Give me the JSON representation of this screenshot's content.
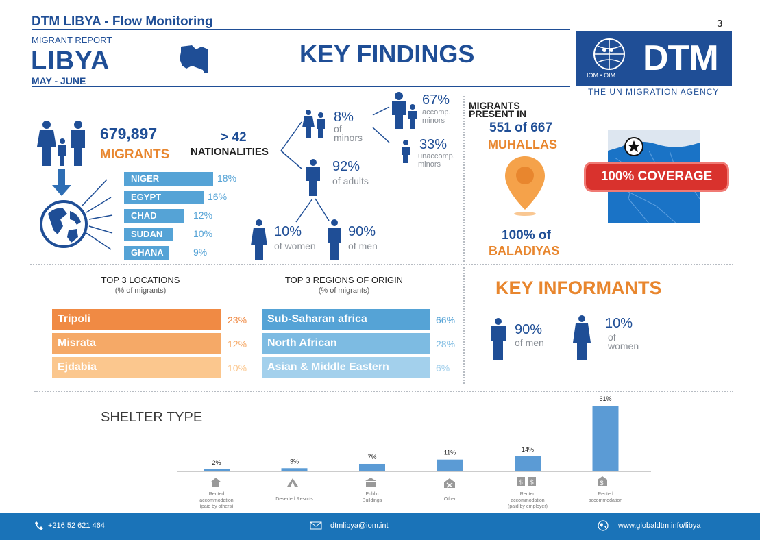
{
  "header": {
    "title": "DTM LIBYA - Flow Monitoring",
    "page_number": "3",
    "report_label": "MIGRANT REPORT",
    "country": "LIBYA",
    "period": "MAY - JUNE",
    "section_title": "KEY FINDINGS",
    "logo_text": "DTM",
    "logo_sub": "IOM • OIM",
    "agency": "THE UN MIGRATION AGENCY"
  },
  "migrants": {
    "count": "679,897",
    "label": "MIGRANTS",
    "nationalities_value": "> 42",
    "nationalities_label": "NATIONALITIES"
  },
  "nationalities": [
    {
      "name": "NIGER",
      "pct": "18%",
      "value": 18
    },
    {
      "name": "EGYPT",
      "pct": "16%",
      "value": 16
    },
    {
      "name": "CHAD",
      "pct": "12%",
      "value": 12
    },
    {
      "name": "SUDAN",
      "pct": "10%",
      "value": 10
    },
    {
      "name": "GHANA",
      "pct": "9%",
      "value": 9
    }
  ],
  "demographics": {
    "minors_pct": "8%",
    "minors_label1": "of",
    "minors_label2": "minors",
    "accomp_pct": "67%",
    "accomp_label1": "accomp.",
    "accomp_label2": "minors",
    "unaccomp_pct": "33%",
    "unaccomp_label1": "unaccomp.",
    "unaccomp_label2": "minors",
    "adults_pct": "92%",
    "adults_label": "of adults",
    "women_pct": "10%",
    "women_label": "of women",
    "men_pct": "90%",
    "men_label": "of men"
  },
  "presence": {
    "label_line1": "MIGRANTS",
    "label_line2": "PRESENT IN",
    "muhallas_count": "551 of 667",
    "muhallas_label": "MUHALLAS",
    "baladiyas_pct": "100% of",
    "baladiyas_label": "BALADIYAS",
    "coverage": "100% COVERAGE"
  },
  "locations": {
    "title": "TOP 3 LOCATIONS",
    "subtitle": "(% of migrants)",
    "items": [
      {
        "name": "Tripoli",
        "pct": "23%",
        "color": "#f08a44"
      },
      {
        "name": "Misrata",
        "pct": "12%",
        "color": "#f5a967"
      },
      {
        "name": "Ejdabia",
        "pct": "10%",
        "color": "#fbc78e"
      }
    ]
  },
  "regions": {
    "title": "TOP 3 REGIONS OF ORIGIN",
    "subtitle": "(% of migrants)",
    "items": [
      {
        "name": "Sub-Saharan africa",
        "pct": "66%",
        "color": "#55a3d6"
      },
      {
        "name": "North African",
        "pct": "28%",
        "color": "#7dbbe2"
      },
      {
        "name": "Asian & Middle Eastern",
        "pct": "6%",
        "color": "#a3d0ec"
      }
    ]
  },
  "key_informants": {
    "title": "KEY INFORMANTS",
    "men_pct": "90%",
    "men_label": "of men",
    "women_pct": "10%",
    "women_label1": "of",
    "women_label2": "women"
  },
  "shelter": {
    "title": "SHELTER TYPE",
    "chart_data": {
      "type": "bar",
      "categories": [
        [
          "Rented",
          "accommodation",
          "(paid by others)"
        ],
        [
          "Deserted Resorts"
        ],
        [
          "Public",
          "Buildings"
        ],
        [
          "Other"
        ],
        [
          "Rented",
          "accommodation",
          "(paid by employer)"
        ],
        [
          "Rented",
          "accommodation"
        ]
      ],
      "values": [
        2,
        3,
        7,
        11,
        14,
        61
      ],
      "labels": [
        "2%",
        "3%",
        "7%",
        "11%",
        "14%",
        "61%"
      ],
      "ylim": [
        0,
        61
      ],
      "bar_color": "#5b9bd5"
    }
  },
  "footer": {
    "phone": "+216 52 621 464",
    "email": "dtmlibya@iom.int",
    "web": "www.globaldtm.info/libya"
  }
}
